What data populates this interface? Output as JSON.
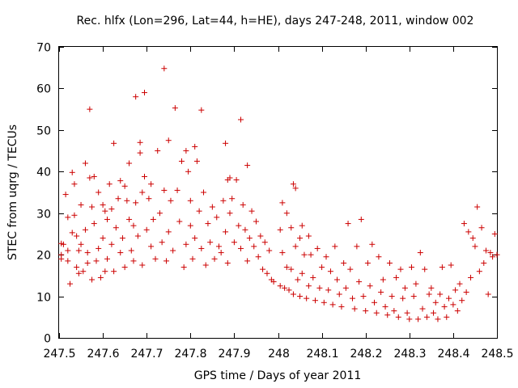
{
  "chart_data": {
    "type": "scatter",
    "title": "Rec. hlfx (Lon=296, Lat=44, h=HE), days 247-248, 2011, window 002",
    "xlabel": "GPS time / Days of year 2011",
    "ylabel": "STEC from uqrg / TECUs",
    "xlim": [
      247.5,
      248.5
    ],
    "ylim": [
      0,
      70
    ],
    "grid": false,
    "marker": "plus",
    "colors": {
      "points": "#cc0000",
      "axes": "#000000"
    },
    "x_ticks": [
      {
        "value": 247.5,
        "label": "247.5"
      },
      {
        "value": 247.6,
        "label": "247.6"
      },
      {
        "value": 247.7,
        "label": "247.7"
      },
      {
        "value": 247.8,
        "label": "247.8"
      },
      {
        "value": 247.9,
        "label": "247.9"
      },
      {
        "value": 248.0,
        "label": "248"
      },
      {
        "value": 248.1,
        "label": "248.1"
      },
      {
        "value": 248.2,
        "label": "248.2"
      },
      {
        "value": 248.3,
        "label": "248.3"
      },
      {
        "value": 248.4,
        "label": "248.4"
      },
      {
        "value": 248.5,
        "label": "248.5"
      }
    ],
    "y_ticks": [
      {
        "value": 0,
        "label": "0"
      },
      {
        "value": 10,
        "label": "10"
      },
      {
        "value": 20,
        "label": "20"
      },
      {
        "value": 30,
        "label": "30"
      },
      {
        "value": 40,
        "label": "40"
      },
      {
        "value": 50,
        "label": "50"
      },
      {
        "value": 60,
        "label": "60"
      },
      {
        "value": 70,
        "label": "70"
      }
    ],
    "points": [
      [
        247.505,
        22.7
      ],
      [
        247.505,
        20.0
      ],
      [
        247.505,
        19.0
      ],
      [
        247.51,
        22.5
      ],
      [
        247.515,
        34.5
      ],
      [
        247.52,
        29.0
      ],
      [
        247.52,
        21.0
      ],
      [
        247.52,
        18.5
      ],
      [
        247.525,
        13.0
      ],
      [
        247.53,
        39.8
      ],
      [
        247.53,
        25.3
      ],
      [
        247.535,
        37.0
      ],
      [
        247.535,
        29.5
      ],
      [
        247.54,
        24.5
      ],
      [
        247.54,
        17.0
      ],
      [
        247.545,
        21.0
      ],
      [
        247.545,
        15.5
      ],
      [
        247.55,
        32.0
      ],
      [
        247.55,
        22.5
      ],
      [
        247.555,
        16.0
      ],
      [
        247.56,
        42.0
      ],
      [
        247.56,
        26.0
      ],
      [
        247.565,
        20.5
      ],
      [
        247.565,
        18.0
      ],
      [
        247.57,
        55.0
      ],
      [
        247.57,
        38.5
      ],
      [
        247.575,
        31.5
      ],
      [
        247.575,
        14.0
      ],
      [
        247.58,
        38.8
      ],
      [
        247.58,
        27.5
      ],
      [
        247.585,
        18.5
      ],
      [
        247.59,
        35.0
      ],
      [
        247.59,
        21.5
      ],
      [
        247.595,
        14.5
      ],
      [
        247.6,
        32.0
      ],
      [
        247.6,
        24.0
      ],
      [
        247.605,
        30.5
      ],
      [
        247.605,
        16.0
      ],
      [
        247.61,
        28.5
      ],
      [
        247.61,
        19.0
      ],
      [
        247.615,
        37.0
      ],
      [
        247.62,
        31.0
      ],
      [
        247.62,
        22.5
      ],
      [
        247.625,
        46.8
      ],
      [
        247.625,
        16.0
      ],
      [
        247.63,
        26.5
      ],
      [
        247.635,
        33.5
      ],
      [
        247.64,
        37.8
      ],
      [
        247.64,
        20.5
      ],
      [
        247.645,
        24.0
      ],
      [
        247.65,
        36.5
      ],
      [
        247.65,
        17.0
      ],
      [
        247.655,
        33.0
      ],
      [
        247.66,
        42.0
      ],
      [
        247.66,
        28.5
      ],
      [
        247.665,
        21.0
      ],
      [
        247.67,
        27.0
      ],
      [
        247.67,
        18.5
      ],
      [
        247.675,
        58.0
      ],
      [
        247.675,
        32.5
      ],
      [
        247.68,
        24.5
      ],
      [
        247.685,
        47.0
      ],
      [
        247.685,
        44.5
      ],
      [
        247.69,
        35.0
      ],
      [
        247.69,
        17.5
      ],
      [
        247.695,
        59.0
      ],
      [
        247.695,
        38.8
      ],
      [
        247.7,
        26.0
      ],
      [
        247.705,
        33.5
      ],
      [
        247.71,
        37.0
      ],
      [
        247.71,
        22.0
      ],
      [
        247.715,
        28.5
      ],
      [
        247.72,
        19.0
      ],
      [
        247.725,
        45.0
      ],
      [
        247.73,
        30.0
      ],
      [
        247.735,
        23.0
      ],
      [
        247.74,
        64.8
      ],
      [
        247.74,
        35.5
      ],
      [
        247.745,
        18.5
      ],
      [
        247.75,
        47.5
      ],
      [
        247.75,
        25.5
      ],
      [
        247.755,
        33.0
      ],
      [
        247.76,
        21.0
      ],
      [
        247.765,
        55.3
      ],
      [
        247.77,
        35.5
      ],
      [
        247.775,
        28.0
      ],
      [
        247.78,
        42.5
      ],
      [
        247.785,
        17.0
      ],
      [
        247.79,
        45.0
      ],
      [
        247.79,
        22.5
      ],
      [
        247.795,
        40.0
      ],
      [
        247.8,
        33.0
      ],
      [
        247.8,
        27.0
      ],
      [
        247.805,
        19.0
      ],
      [
        247.81,
        46.0
      ],
      [
        247.81,
        24.0
      ],
      [
        247.815,
        42.5
      ],
      [
        247.82,
        30.5
      ],
      [
        247.825,
        54.8
      ],
      [
        247.825,
        21.5
      ],
      [
        247.83,
        35.0
      ],
      [
        247.835,
        17.5
      ],
      [
        247.84,
        27.5
      ],
      [
        247.845,
        23.0
      ],
      [
        247.85,
        31.5
      ],
      [
        247.855,
        19.0
      ],
      [
        247.86,
        29.0
      ],
      [
        247.865,
        22.0
      ],
      [
        247.87,
        20.5
      ],
      [
        247.875,
        33.0
      ],
      [
        247.88,
        46.8
      ],
      [
        247.88,
        25.5
      ],
      [
        247.885,
        38.0
      ],
      [
        247.885,
        18.0
      ],
      [
        247.89,
        38.5
      ],
      [
        247.89,
        30.0
      ],
      [
        247.895,
        33.5
      ],
      [
        247.9,
        23.0
      ],
      [
        247.905,
        38.0
      ],
      [
        247.91,
        27.0
      ],
      [
        247.915,
        52.5
      ],
      [
        247.915,
        21.5
      ],
      [
        247.92,
        32.0
      ],
      [
        247.925,
        26.0
      ],
      [
        247.93,
        41.5
      ],
      [
        247.93,
        18.5
      ],
      [
        247.935,
        24.0
      ],
      [
        247.94,
        30.5
      ],
      [
        247.945,
        22.0
      ],
      [
        247.95,
        28.0
      ],
      [
        247.955,
        19.5
      ],
      [
        247.96,
        24.5
      ],
      [
        247.965,
        16.5
      ],
      [
        247.97,
        23.0
      ],
      [
        247.975,
        15.5
      ],
      [
        247.98,
        21.0
      ],
      [
        247.985,
        14.0
      ],
      [
        247.99,
        13.5
      ],
      [
        248.005,
        12.5
      ],
      [
        248.005,
        26.0
      ],
      [
        248.01,
        32.5
      ],
      [
        248.01,
        20.5
      ],
      [
        248.015,
        12.0
      ],
      [
        248.02,
        30.0
      ],
      [
        248.02,
        17.0
      ],
      [
        248.025,
        11.5
      ],
      [
        248.03,
        26.5
      ],
      [
        248.03,
        16.5
      ],
      [
        248.035,
        37.0
      ],
      [
        248.035,
        10.5
      ],
      [
        248.04,
        36.0
      ],
      [
        248.04,
        22.0
      ],
      [
        248.045,
        14.0
      ],
      [
        248.05,
        24.0
      ],
      [
        248.05,
        10.0
      ],
      [
        248.055,
        27.0
      ],
      [
        248.055,
        15.5
      ],
      [
        248.06,
        20.0
      ],
      [
        248.065,
        9.5
      ],
      [
        248.07,
        24.5
      ],
      [
        248.07,
        12.5
      ],
      [
        248.075,
        20.0
      ],
      [
        248.08,
        14.5
      ],
      [
        248.085,
        9.0
      ],
      [
        248.09,
        21.5
      ],
      [
        248.095,
        12.0
      ],
      [
        248.1,
        17.0
      ],
      [
        248.105,
        8.5
      ],
      [
        248.11,
        19.5
      ],
      [
        248.115,
        11.5
      ],
      [
        248.12,
        16.0
      ],
      [
        248.125,
        8.0
      ],
      [
        248.13,
        22.0
      ],
      [
        248.135,
        14.0
      ],
      [
        248.14,
        10.5
      ],
      [
        248.145,
        7.5
      ],
      [
        248.15,
        18.0
      ],
      [
        248.155,
        12.0
      ],
      [
        248.16,
        27.5
      ],
      [
        248.165,
        16.5
      ],
      [
        248.17,
        9.5
      ],
      [
        248.175,
        7.0
      ],
      [
        248.18,
        22.0
      ],
      [
        248.185,
        13.5
      ],
      [
        248.19,
        28.5
      ],
      [
        248.195,
        10.0
      ],
      [
        248.2,
        6.5
      ],
      [
        248.205,
        18.0
      ],
      [
        248.21,
        12.5
      ],
      [
        248.215,
        22.5
      ],
      [
        248.22,
        8.5
      ],
      [
        248.225,
        6.0
      ],
      [
        248.23,
        19.5
      ],
      [
        248.235,
        11.0
      ],
      [
        248.24,
        14.0
      ],
      [
        248.245,
        7.5
      ],
      [
        248.25,
        5.5
      ],
      [
        248.255,
        18.0
      ],
      [
        248.26,
        10.0
      ],
      [
        248.265,
        6.5
      ],
      [
        248.27,
        14.5
      ],
      [
        248.275,
        5.0
      ],
      [
        248.28,
        16.5
      ],
      [
        248.285,
        9.5
      ],
      [
        248.29,
        12.0
      ],
      [
        248.295,
        6.0
      ],
      [
        248.3,
        4.5
      ],
      [
        248.305,
        17.0
      ],
      [
        248.31,
        10.0
      ],
      [
        248.315,
        13.0
      ],
      [
        248.32,
        4.5
      ],
      [
        248.325,
        20.5
      ],
      [
        248.33,
        7.0
      ],
      [
        248.335,
        16.5
      ],
      [
        248.34,
        5.0
      ],
      [
        248.345,
        10.5
      ],
      [
        248.35,
        12.0
      ],
      [
        248.355,
        6.0
      ],
      [
        248.36,
        8.5
      ],
      [
        248.365,
        4.5
      ],
      [
        248.37,
        10.5
      ],
      [
        248.375,
        17.0
      ],
      [
        248.38,
        7.5
      ],
      [
        248.385,
        5.0
      ],
      [
        248.39,
        9.5
      ],
      [
        248.395,
        17.5
      ],
      [
        248.4,
        8.0
      ],
      [
        248.405,
        11.5
      ],
      [
        248.41,
        6.5
      ],
      [
        248.415,
        13.0
      ],
      [
        248.42,
        9.0
      ],
      [
        248.425,
        27.5
      ],
      [
        248.43,
        11.0
      ],
      [
        248.435,
        25.5
      ],
      [
        248.44,
        14.5
      ],
      [
        248.445,
        24.0
      ],
      [
        248.45,
        22.0
      ],
      [
        248.455,
        31.5
      ],
      [
        248.46,
        16.0
      ],
      [
        248.465,
        26.5
      ],
      [
        248.47,
        18.0
      ],
      [
        248.475,
        21.0
      ],
      [
        248.48,
        10.5
      ],
      [
        248.485,
        20.5
      ],
      [
        248.49,
        19.5
      ],
      [
        248.495,
        25.0
      ],
      [
        248.5,
        20.0
      ]
    ]
  }
}
